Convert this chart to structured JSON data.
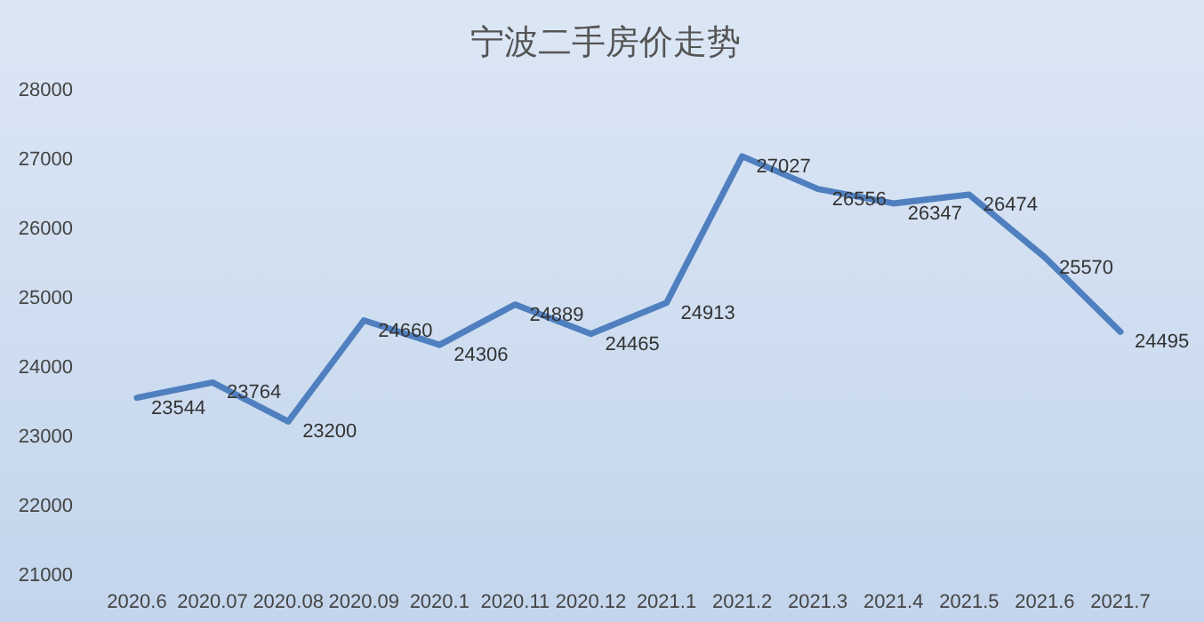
{
  "chart_data": {
    "type": "line",
    "title": "宁波二手房价走势",
    "categories": [
      "2020.6",
      "2020.07",
      "2020.08",
      "2020.09",
      "2020.1",
      "2020.11",
      "2020.12",
      "2021.1",
      "2021.2",
      "2021.3",
      "2021.4",
      "2021.5",
      "2021.6",
      "2021.7"
    ],
    "series": [
      {
        "color": "#4f7fbf",
        "values": [
          23544,
          23764,
          23200,
          24660,
          24306,
          24889,
          24465,
          24913,
          27027,
          26556,
          26347,
          26474,
          25570,
          24495
        ]
      }
    ],
    "ylim": [
      21000,
      28000
    ],
    "yticks": [
      21000,
      22000,
      23000,
      24000,
      25000,
      26000,
      27000,
      28000
    ],
    "grid": false,
    "data_labels": true,
    "marker": "none",
    "line_style": "solid"
  }
}
